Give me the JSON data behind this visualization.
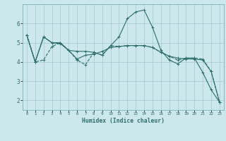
{
  "xlabel": "Humidex (Indice chaleur)",
  "bg_color": "#cce8ec",
  "line_color": "#2d6e6a",
  "grid_color": "#aacdd4",
  "xlim": [
    -0.5,
    23.5
  ],
  "ylim": [
    1.5,
    7.0
  ],
  "xticks": [
    0,
    1,
    2,
    3,
    4,
    5,
    6,
    7,
    8,
    9,
    10,
    11,
    12,
    13,
    14,
    15,
    16,
    17,
    18,
    19,
    20,
    21,
    22,
    23
  ],
  "yticks": [
    2,
    3,
    4,
    5,
    6
  ],
  "line1_x": [
    0,
    1,
    2,
    3,
    4,
    5,
    6,
    7,
    8,
    9,
    10,
    11,
    12,
    13,
    14,
    15,
    16,
    17,
    18,
    19,
    20,
    21,
    22,
    23
  ],
  "line1_y": [
    5.4,
    4.0,
    4.1,
    4.8,
    5.0,
    4.6,
    4.1,
    3.85,
    4.5,
    4.35,
    4.85,
    4.8,
    4.85,
    4.85,
    4.85,
    4.75,
    4.5,
    4.3,
    4.1,
    4.2,
    4.2,
    4.15,
    3.5,
    1.9
  ],
  "line2_x": [
    0,
    1,
    2,
    3,
    4,
    5,
    6,
    7,
    8,
    9,
    10,
    11,
    12,
    13,
    14,
    15,
    16,
    17,
    18,
    19,
    20,
    21,
    22,
    23
  ],
  "line2_y": [
    5.4,
    4.0,
    5.3,
    5.0,
    5.0,
    4.6,
    4.55,
    4.55,
    4.5,
    4.35,
    4.85,
    5.3,
    6.25,
    6.6,
    6.7,
    5.8,
    4.6,
    4.1,
    3.9,
    4.2,
    4.2,
    3.45,
    2.55,
    1.9
  ],
  "line3_x": [
    0,
    1,
    2,
    3,
    4,
    5,
    6,
    7,
    8,
    9,
    10,
    11,
    12,
    13,
    14,
    15,
    16,
    17,
    18,
    19,
    20,
    21,
    22,
    23
  ],
  "line3_y": [
    5.4,
    4.0,
    5.3,
    5.0,
    4.95,
    4.6,
    4.15,
    4.35,
    4.4,
    4.55,
    4.75,
    4.8,
    4.85,
    4.85,
    4.85,
    4.75,
    4.5,
    4.3,
    4.2,
    4.15,
    4.15,
    4.1,
    3.5,
    1.9
  ]
}
